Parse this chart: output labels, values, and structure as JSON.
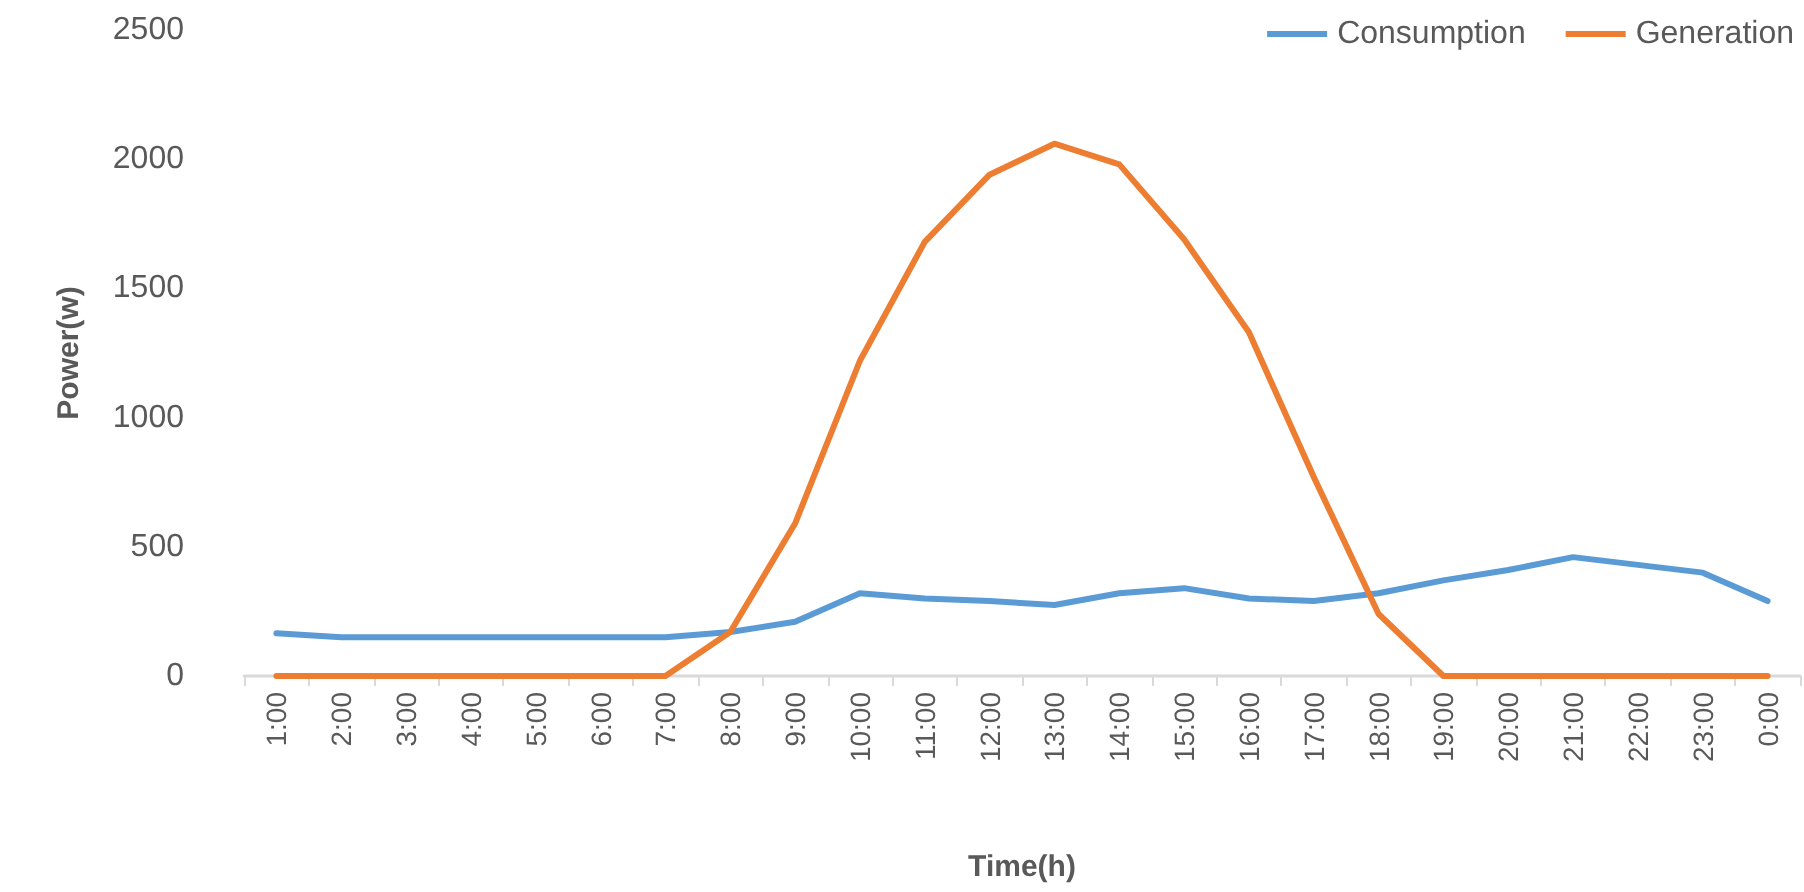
{
  "chart_data": {
    "type": "line",
    "xlabel": "Time(h)",
    "ylabel": "Power(w)",
    "categories": [
      "1:00",
      "2:00",
      "3:00",
      "4:00",
      "5:00",
      "6:00",
      "7:00",
      "8:00",
      "9:00",
      "10:00",
      "11:00",
      "12:00",
      "13:00",
      "14:00",
      "15:00",
      "16:00",
      "17:00",
      "18:00",
      "19:00",
      "20:00",
      "21:00",
      "22:00",
      "23:00",
      "0:00"
    ],
    "series": [
      {
        "name": "Consumption",
        "color": "#5b9bd5",
        "values": [
          165,
          150,
          150,
          150,
          150,
          150,
          150,
          170,
          210,
          320,
          300,
          290,
          275,
          320,
          340,
          300,
          290,
          320,
          370,
          410,
          460,
          430,
          400,
          290
        ]
      },
      {
        "name": "Generation",
        "color": "#ed7d31",
        "values": [
          0,
          0,
          0,
          0,
          0,
          0,
          0,
          170,
          590,
          1220,
          1680,
          1940,
          2060,
          1980,
          1690,
          1330,
          770,
          240,
          0,
          0,
          0,
          0,
          0,
          0
        ]
      }
    ],
    "ylim": [
      0,
      2500
    ],
    "yticks": [
      0,
      500,
      1000,
      1500,
      2000,
      2500
    ],
    "grid": false,
    "legend": "top right",
    "marker": "none",
    "line_style": "solid"
  }
}
